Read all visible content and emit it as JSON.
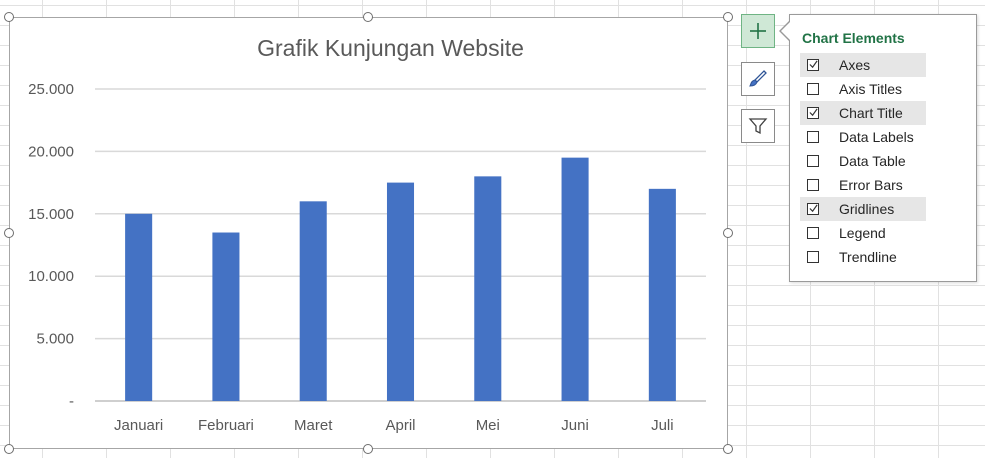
{
  "chart_data": {
    "type": "bar",
    "title": "Grafik Kunjungan Website",
    "xlabel": "",
    "ylabel": "",
    "categories": [
      "Januari",
      "Februari",
      "Maret",
      "April",
      "Mei",
      "Juni",
      "Juli"
    ],
    "values": [
      15000,
      13500,
      16000,
      17500,
      18000,
      19500,
      17000
    ],
    "ylim": [
      0,
      25000
    ],
    "yticks": [
      0,
      5000,
      10000,
      15000,
      20000,
      25000
    ],
    "ytick_labels": [
      "-",
      "5.000",
      "10.000",
      "15.000",
      "20.000",
      "25.000"
    ],
    "grid": true,
    "legend": false,
    "bar_color": "#4472c4"
  },
  "side_buttons": {
    "add_icon": "plus-icon",
    "style_icon": "brush-icon",
    "filter_icon": "filter-icon"
  },
  "chart_elements_panel": {
    "title": "Chart Elements",
    "title_color": "#217346",
    "items": [
      {
        "label": "Axes",
        "checked": true,
        "highlighted": true
      },
      {
        "label": "Axis Titles",
        "checked": false,
        "highlighted": false
      },
      {
        "label": "Chart Title",
        "checked": true,
        "highlighted": true
      },
      {
        "label": "Data Labels",
        "checked": false,
        "highlighted": false
      },
      {
        "label": "Data Table",
        "checked": false,
        "highlighted": false
      },
      {
        "label": "Error Bars",
        "checked": false,
        "highlighted": false
      },
      {
        "label": "Gridlines",
        "checked": true,
        "highlighted": true
      },
      {
        "label": "Legend",
        "checked": false,
        "highlighted": false
      },
      {
        "label": "Trendline",
        "checked": false,
        "highlighted": false
      }
    ]
  }
}
